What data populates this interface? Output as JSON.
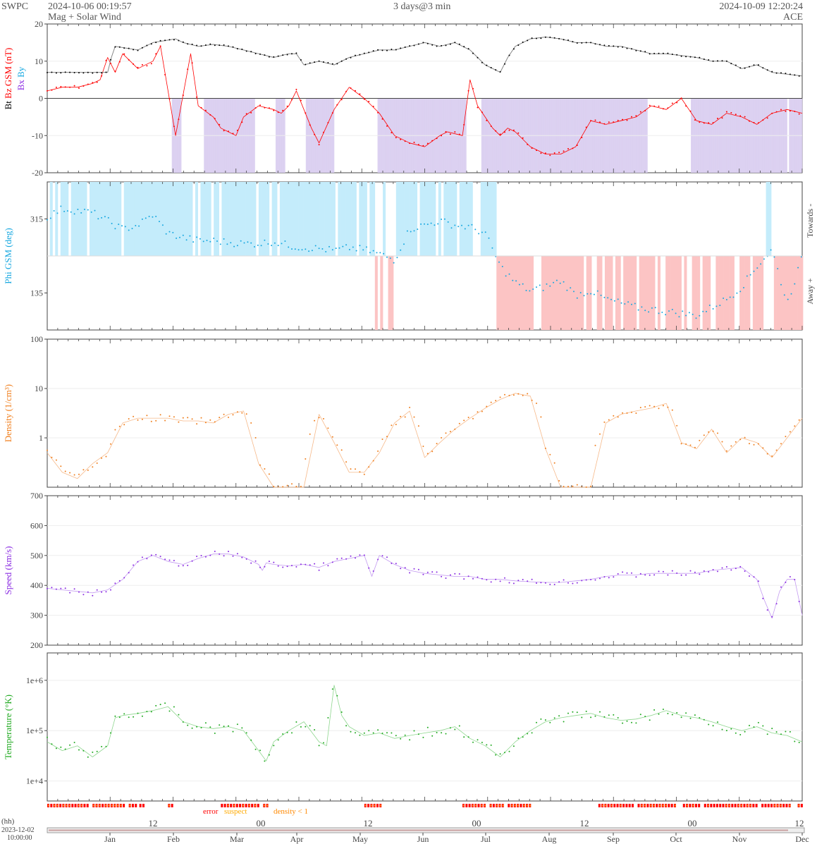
{
  "header": {
    "brand": "SWPC",
    "start_time": "2024-10-06 00:19:57",
    "subtitle": "Mag + Solar Wind",
    "span": "3 days@3 min",
    "end_time": "2024-10-09 12:20:24",
    "source": "ACE"
  },
  "colors": {
    "bt": "#000000",
    "bz": "#ff0000",
    "phi": "#18a8e0",
    "density": "#f07f1e",
    "speed": "#8a2be2",
    "temperature": "#22aa22",
    "bz_shade": "#d8ccf0",
    "towards_shade": "#c4ecfb",
    "away_shade": "#fcc4c4",
    "error": "#ff0000",
    "suspect": "#ffaa00",
    "density_lt1": "#ff8800"
  },
  "chart_data": [
    {
      "type": "line",
      "panel": "mag",
      "ylabel_parts": [
        "Bt",
        "Bz GSM (nT)",
        "Bx",
        "By"
      ],
      "ylim": [
        -20,
        20
      ],
      "yticks": [
        "20",
        "10",
        "0",
        "-10",
        "-20"
      ],
      "series": [
        {
          "name": "Bt",
          "x": [
            0,
            3,
            6,
            8,
            8.5,
            9,
            12,
            14,
            17,
            18,
            20,
            22,
            24,
            26,
            28,
            30,
            32,
            33,
            34,
            36,
            38,
            40,
            42,
            44,
            46,
            48,
            50,
            52,
            54,
            56,
            58,
            60,
            61,
            62,
            63,
            64,
            66,
            68,
            70,
            72,
            74,
            76,
            78,
            80,
            82,
            84,
            86,
            88,
            90,
            92,
            94,
            96,
            98,
            100
          ],
          "y": [
            7,
            7,
            7,
            7,
            11,
            14,
            13,
            15,
            16,
            15,
            14,
            14.5,
            14,
            13,
            12,
            11,
            12,
            12,
            9,
            10,
            9,
            11,
            12,
            13,
            13,
            14,
            15,
            14,
            15,
            13,
            9,
            7,
            11,
            14,
            15,
            16,
            16.5,
            16,
            15,
            15,
            14,
            14,
            13,
            12,
            12,
            11.5,
            11,
            10,
            10,
            8,
            9,
            7,
            6.5,
            6
          ]
        },
        {
          "name": "Bz",
          "x": [
            0,
            2,
            4,
            6,
            7,
            8,
            9,
            10,
            12,
            14,
            15,
            17,
            19,
            20,
            22,
            23,
            24,
            25,
            26,
            28,
            30,
            31,
            32,
            33,
            34,
            35,
            36,
            38,
            40,
            42,
            44,
            46,
            48,
            50,
            52,
            53,
            55,
            56,
            57,
            58,
            59,
            60,
            61,
            62,
            64,
            66,
            68,
            70,
            72,
            74,
            76,
            78,
            80,
            82,
            84,
            86,
            88,
            90,
            92,
            94,
            96,
            98,
            100
          ],
          "y": [
            2,
            3,
            3,
            4,
            5,
            11,
            7,
            12,
            8,
            10,
            14,
            -10,
            12,
            -2,
            -5,
            -8,
            -9,
            -10,
            -5,
            -2,
            -3,
            -4,
            -2,
            2,
            -3,
            -8,
            -12,
            -3,
            3,
            0,
            -4,
            -10,
            -12,
            -13,
            -10,
            -9,
            -10,
            5,
            -2,
            -5,
            -8,
            -10,
            -8,
            -9,
            -13,
            -15,
            -15,
            -13,
            -6,
            -7,
            -6,
            -5,
            -2,
            -3,
            0,
            -6,
            -7,
            -4,
            -5,
            -7,
            -4,
            -3,
            -4
          ]
        }
      ]
    },
    {
      "type": "scatter",
      "panel": "phi",
      "ylabel": "Phi GSM (deg)",
      "yticks": [
        "315",
        "135"
      ],
      "sector_labels": [
        "Towards -",
        "Away +"
      ],
      "series": [
        {
          "name": "Phi",
          "x": [
            0,
            2,
            4,
            6,
            8,
            10,
            12,
            14,
            16,
            18,
            20,
            22,
            24,
            26,
            28,
            30,
            32,
            34,
            36,
            38,
            40,
            42,
            44,
            46,
            48,
            50,
            52,
            54,
            56,
            58,
            60,
            62,
            64,
            66,
            68,
            70,
            72,
            74,
            76,
            78,
            80,
            82,
            84,
            86,
            88,
            90,
            92,
            94,
            96,
            98,
            100
          ],
          "y": [
            320,
            340,
            335,
            330,
            310,
            290,
            300,
            325,
            280,
            270,
            262,
            262,
            258,
            255,
            255,
            260,
            250,
            245,
            243,
            238,
            245,
            240,
            230,
            215,
            290,
            300,
            310,
            300,
            295,
            280,
            200,
            160,
            140,
            150,
            165,
            130,
            140,
            120,
            110,
            100,
            95,
            90,
            85,
            80,
            100,
            120,
            150,
            200,
            240,
            110,
            220
          ]
        }
      ]
    },
    {
      "type": "line",
      "panel": "density",
      "ylabel": "Density (1/cm³)",
      "yscale": "log",
      "ylim": [
        0.1,
        100
      ],
      "yticks": [
        "100",
        "10",
        "1"
      ],
      "series": [
        {
          "name": "Density",
          "x": [
            0,
            2,
            4,
            6,
            8,
            10,
            12,
            14,
            16,
            18,
            20,
            22,
            24,
            26,
            28,
            30,
            32,
            34,
            36,
            38,
            40,
            42,
            44,
            46,
            48,
            50,
            52,
            54,
            56,
            58,
            60,
            62,
            64,
            66,
            68,
            70,
            72,
            74,
            76,
            78,
            80,
            82,
            84,
            86,
            88,
            90,
            92,
            94,
            96,
            98,
            100
          ],
          "y": [
            0.5,
            0.2,
            0.15,
            0.3,
            0.5,
            2,
            2.5,
            2.5,
            2.5,
            2.2,
            2.2,
            2,
            3,
            3.5,
            0.3,
            0.1,
            0.1,
            0.1,
            3,
            0.8,
            0.2,
            0.2,
            0.5,
            2,
            3.5,
            0.4,
            0.8,
            1.5,
            2.5,
            4,
            6,
            8,
            7,
            0.6,
            0.1,
            0.1,
            0.1,
            2,
            3,
            3.5,
            4,
            5,
            0.8,
            0.6,
            1.5,
            0.5,
            1,
            0.8,
            0.4,
            1,
            2.5
          ]
        }
      ]
    },
    {
      "type": "line",
      "panel": "speed",
      "ylabel": "Speed (km/s)",
      "ylim": [
        200,
        700
      ],
      "yticks": [
        "700",
        "600",
        "500",
        "400",
        "300",
        "200"
      ],
      "series": [
        {
          "name": "Speed",
          "x": [
            0,
            2,
            4,
            6,
            8,
            10,
            12,
            14,
            16,
            18,
            20,
            22,
            24,
            26,
            28,
            28.5,
            29,
            30,
            32,
            34,
            36,
            38,
            40,
            42,
            43,
            44,
            46,
            48,
            50,
            52,
            54,
            56,
            58,
            60,
            62,
            64,
            66,
            68,
            70,
            72,
            74,
            76,
            78,
            80,
            82,
            84,
            86,
            88,
            90,
            92,
            94,
            95,
            96,
            97,
            98,
            99,
            100
          ],
          "y": [
            390,
            385,
            380,
            375,
            385,
            420,
            480,
            500,
            480,
            470,
            490,
            505,
            505,
            495,
            470,
            450,
            475,
            470,
            465,
            470,
            460,
            480,
            490,
            500,
            430,
            500,
            470,
            450,
            440,
            435,
            430,
            430,
            420,
            420,
            415,
            412,
            410,
            410,
            415,
            420,
            430,
            435,
            435,
            440,
            440,
            440,
            440,
            450,
            455,
            460,
            420,
            350,
            290,
            380,
            420,
            420,
            300
          ]
        }
      ]
    },
    {
      "type": "line",
      "panel": "temperature",
      "ylabel": "Temperature (°K)",
      "yscale": "log",
      "yticks": [
        "1e+6",
        "1e+5",
        "1e+4"
      ],
      "series": [
        {
          "name": "Temperature",
          "x": [
            0,
            2,
            4,
            6,
            8,
            9,
            10,
            12,
            14,
            16,
            18,
            20,
            22,
            24,
            26,
            28,
            29,
            30,
            32,
            34,
            36,
            37,
            38,
            39,
            40,
            42,
            44,
            46,
            48,
            50,
            52,
            54,
            56,
            58,
            60,
            62,
            64,
            66,
            68,
            70,
            72,
            74,
            76,
            78,
            80,
            82,
            84,
            86,
            88,
            90,
            92,
            94,
            96,
            98,
            100
          ],
          "y": [
            60000,
            40000,
            50000,
            30000,
            50000,
            180000,
            200000,
            220000,
            250000,
            300000,
            150000,
            120000,
            110000,
            120000,
            100000,
            40000,
            25000,
            60000,
            100000,
            150000,
            60000,
            50000,
            800000,
            200000,
            120000,
            80000,
            90000,
            70000,
            80000,
            90000,
            100000,
            120000,
            70000,
            50000,
            30000,
            60000,
            100000,
            150000,
            180000,
            200000,
            220000,
            180000,
            160000,
            170000,
            200000,
            250000,
            200000,
            180000,
            150000,
            120000,
            100000,
            120000,
            90000,
            80000,
            60000
          ]
        }
      ]
    }
  ],
  "flag_legend": {
    "error": "error",
    "suspect": "suspect",
    "density_lt1": "density < 1"
  },
  "xaxis": {
    "unit": "(hh)",
    "start_date": "2023-12-02",
    "start_time": "10:00:00",
    "hour_ticks": [
      "12",
      "00",
      "12",
      "00",
      "12",
      "00",
      "12"
    ],
    "months": [
      "Jan",
      "Feb",
      "Mar",
      "Apr",
      "May",
      "Jun",
      "Jul",
      "Aug",
      "Sep",
      "Oct",
      "Nov",
      "Dec"
    ]
  }
}
